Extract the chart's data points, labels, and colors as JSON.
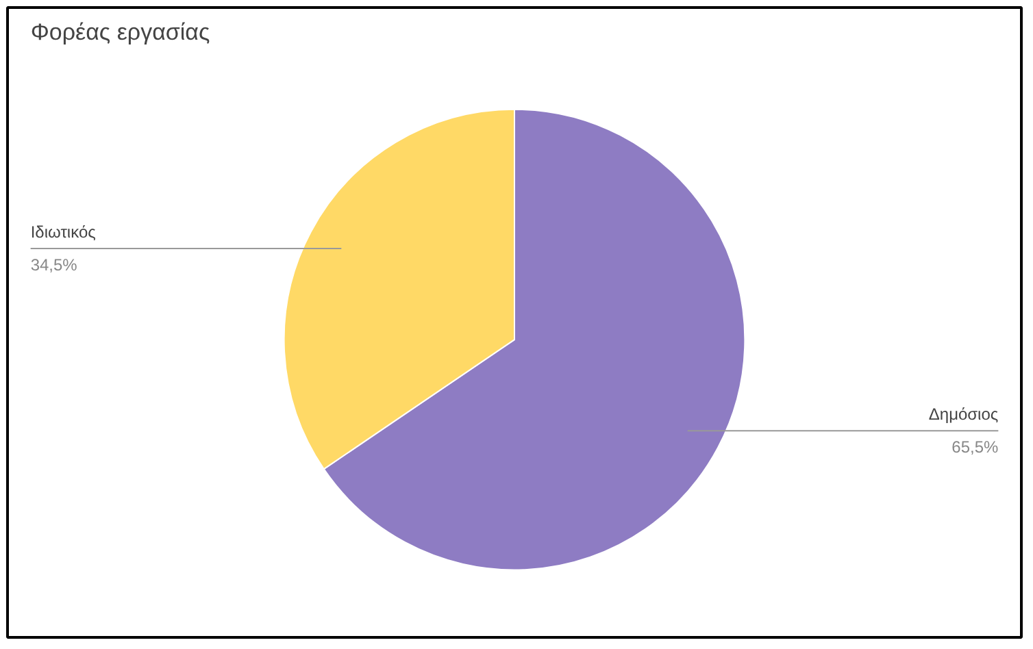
{
  "chart_data": {
    "type": "pie",
    "title": "Φορέας εργασίας",
    "categories": [
      "Δημόσιος",
      "Ιδιωτικός"
    ],
    "values": [
      65.5,
      34.5
    ],
    "value_labels": [
      "65,5%",
      "34,5%"
    ],
    "colors": [
      "#8e7cc3",
      "#ffd966"
    ]
  }
}
